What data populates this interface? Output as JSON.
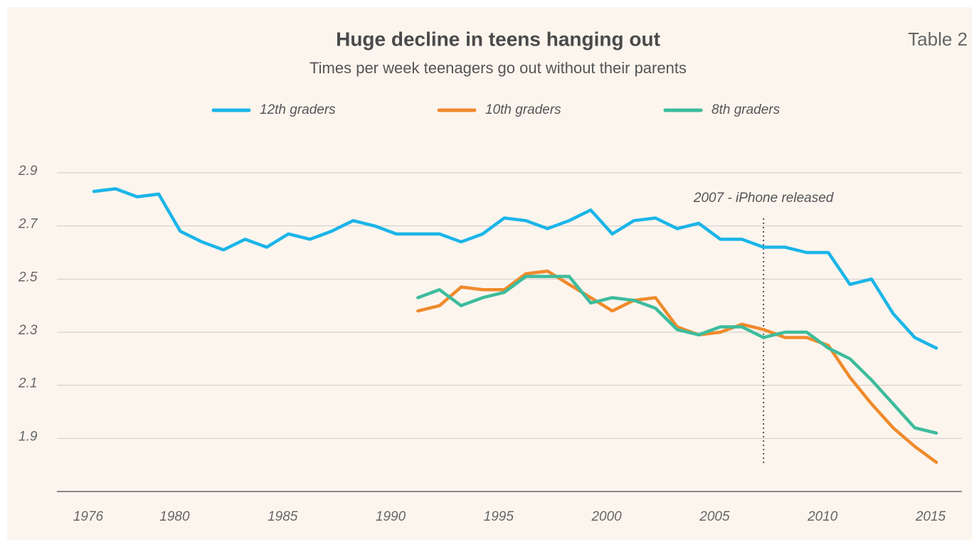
{
  "chart_data": {
    "type": "line",
    "title": "Huge decline in teens hanging out",
    "subtitle": "Times per week teenagers go out without their parents",
    "label": "Table 2",
    "x": [
      1976,
      1977,
      1978,
      1979,
      1980,
      1981,
      1982,
      1983,
      1984,
      1985,
      1986,
      1987,
      1988,
      1989,
      1990,
      1991,
      1992,
      1993,
      1994,
      1995,
      1996,
      1997,
      1998,
      1999,
      2000,
      2001,
      2002,
      2003,
      2004,
      2005,
      2006,
      2007,
      2008,
      2009,
      2010,
      2011,
      2012,
      2013,
      2014,
      2015
    ],
    "series": [
      {
        "name": "12th graders",
        "color": "#1bb5e8",
        "values": [
          2.83,
          2.84,
          2.81,
          2.82,
          2.68,
          2.64,
          2.61,
          2.65,
          2.62,
          2.67,
          2.65,
          2.68,
          2.72,
          2.7,
          2.67,
          2.67,
          2.67,
          2.64,
          2.67,
          2.73,
          2.72,
          2.69,
          2.72,
          2.76,
          2.67,
          2.72,
          2.73,
          2.69,
          2.71,
          2.65,
          2.65,
          2.62,
          2.62,
          2.6,
          2.6,
          2.48,
          2.5,
          2.37,
          2.28,
          2.24
        ]
      },
      {
        "name": "10th graders",
        "color": "#f08a2c",
        "values": [
          null,
          null,
          null,
          null,
          null,
          null,
          null,
          null,
          null,
          null,
          null,
          null,
          null,
          null,
          null,
          2.38,
          2.4,
          2.47,
          2.46,
          2.46,
          2.52,
          2.53,
          2.48,
          2.43,
          2.38,
          2.42,
          2.43,
          2.32,
          2.29,
          2.3,
          2.33,
          2.31,
          2.28,
          2.28,
          2.25,
          2.13,
          2.03,
          1.94,
          1.87,
          1.81
        ]
      },
      {
        "name": "8th graders",
        "color": "#3dbc9c",
        "values": [
          null,
          null,
          null,
          null,
          null,
          null,
          null,
          null,
          null,
          null,
          null,
          null,
          null,
          null,
          null,
          2.43,
          2.46,
          2.4,
          2.43,
          2.45,
          2.51,
          2.51,
          2.51,
          2.41,
          2.43,
          2.42,
          2.39,
          2.31,
          2.29,
          2.32,
          2.32,
          2.28,
          2.3,
          2.3,
          2.24,
          2.2,
          2.12,
          2.03,
          1.94,
          1.92
        ]
      }
    ],
    "xlim": [
      1976,
      2015
    ],
    "xticks": [
      1976,
      1980,
      1985,
      1990,
      1995,
      2000,
      2005,
      2010,
      2015
    ],
    "ylim": [
      1.7,
      2.9
    ],
    "yticks": [
      1.9,
      2.1,
      2.3,
      2.5,
      2.7,
      2.9
    ],
    "grid": true,
    "legend": "top",
    "annotation": {
      "text": "2007 - iPhone released",
      "x": 2007
    }
  }
}
